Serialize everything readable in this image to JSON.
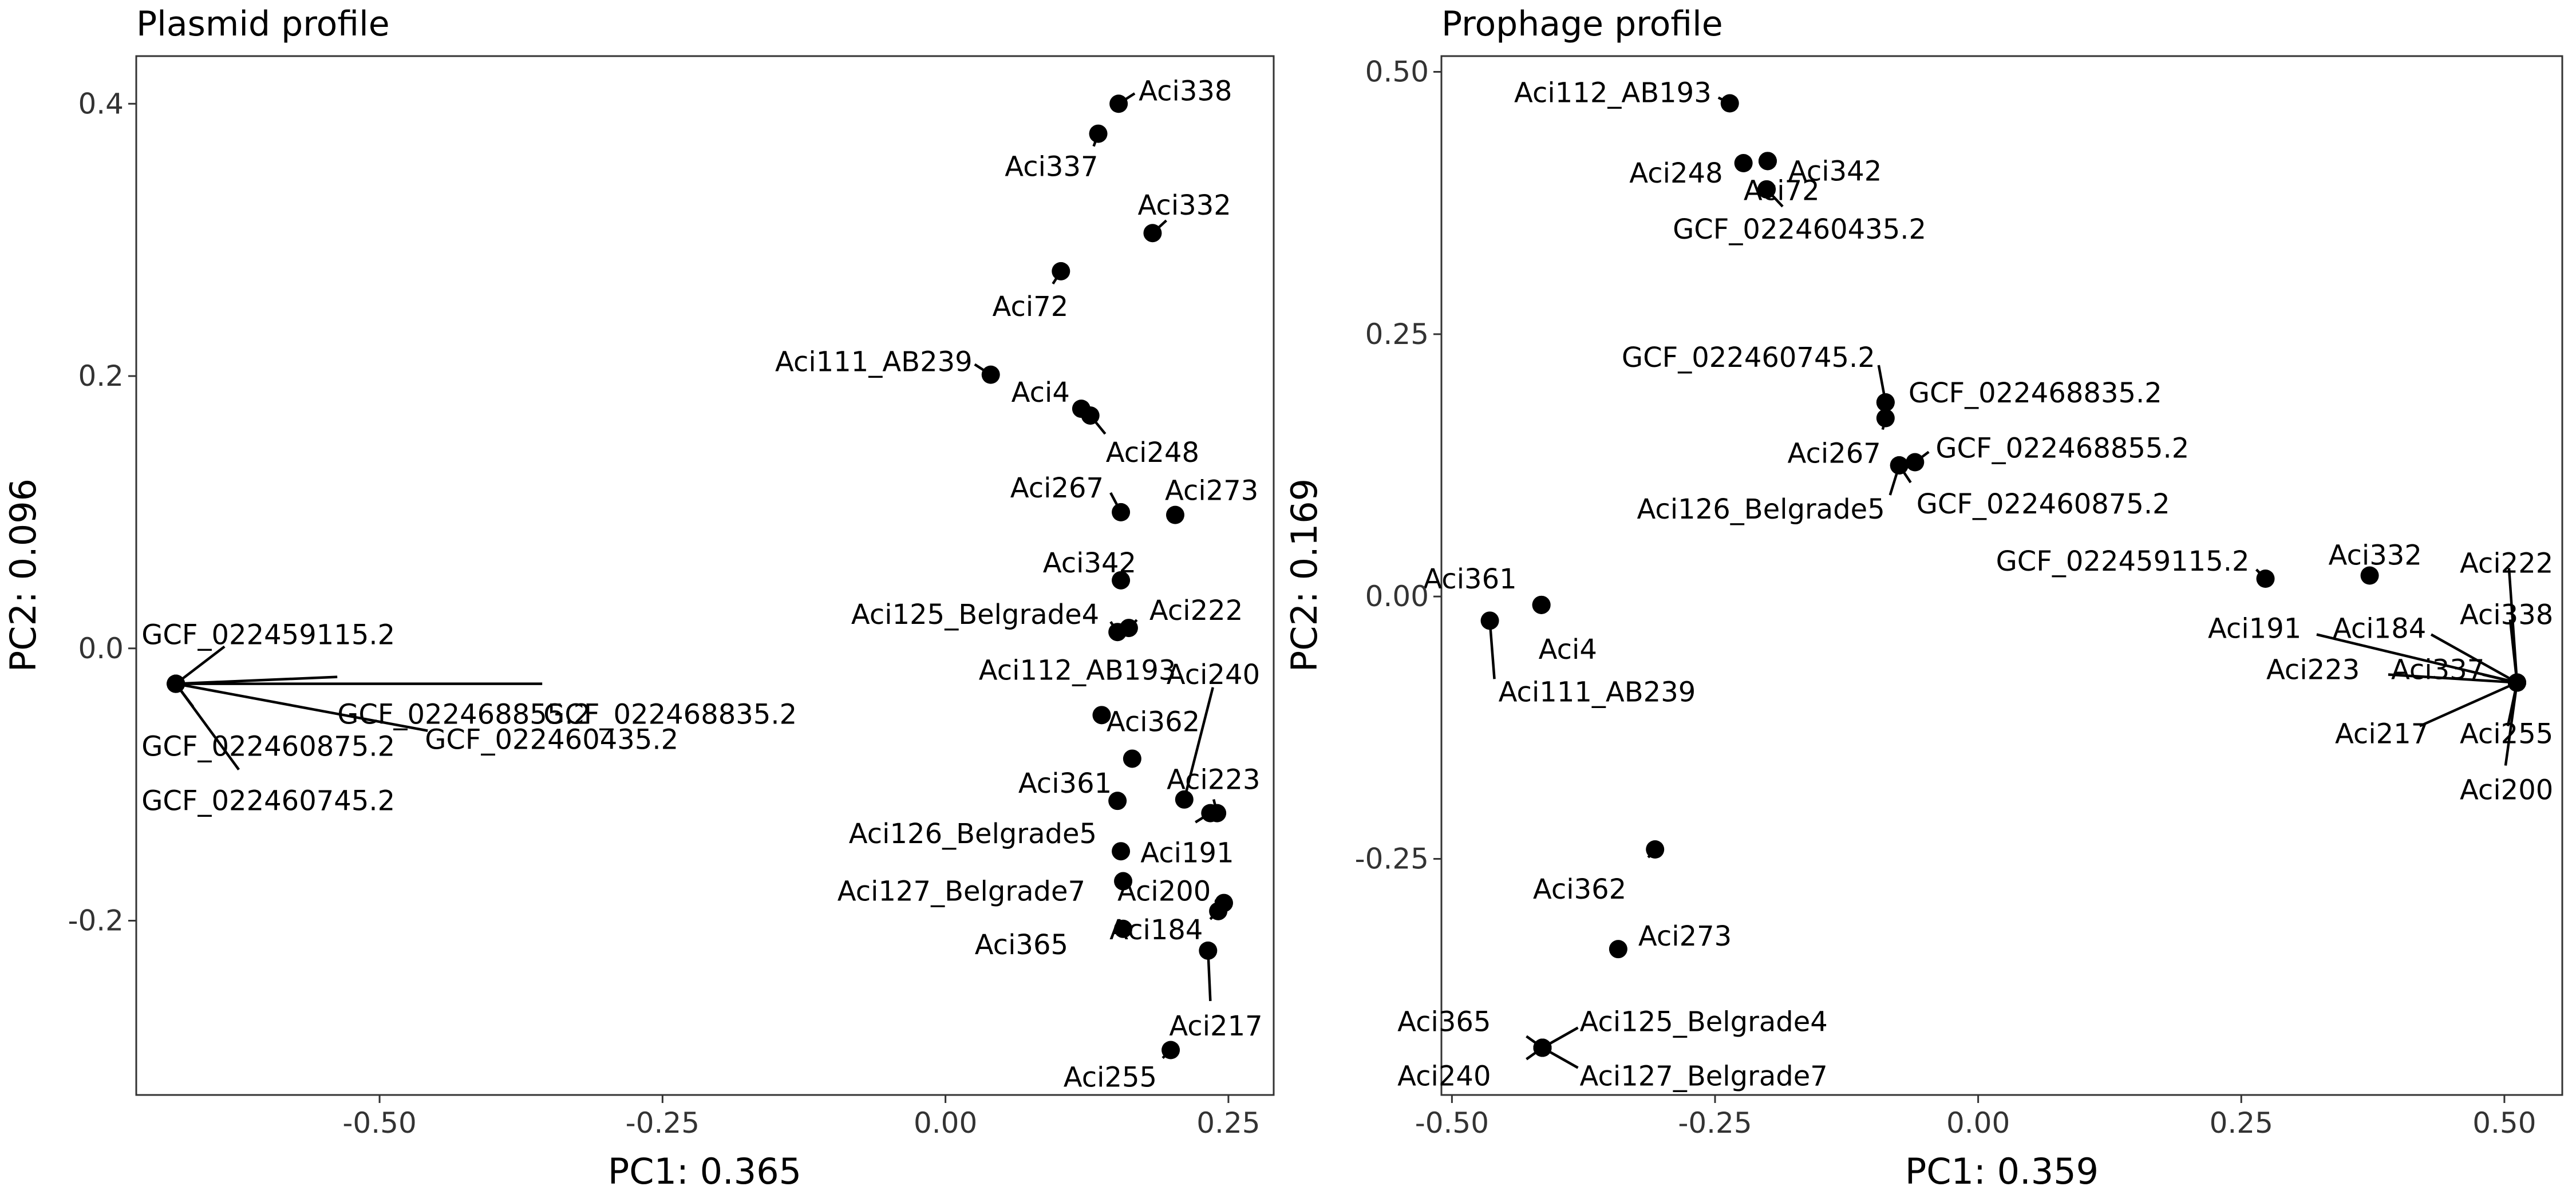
{
  "colors": {
    "point": "#000000",
    "frame": "#333333",
    "background": "#ffffff"
  },
  "chart_data": [
    {
      "type": "scatter",
      "title": "Plasmid profile",
      "xlabel": "PC1: 0.365",
      "ylabel": "PC2: 0.096",
      "xlim": [
        -0.715,
        0.29
      ],
      "ylim": [
        -0.328,
        0.435
      ],
      "xticks": [
        -0.5,
        -0.25,
        0.0,
        0.25
      ],
      "xtick_labels": [
        "-0.50",
        "-0.25",
        "0.00",
        "0.25"
      ],
      "yticks": [
        -0.2,
        0.0,
        0.2,
        0.4
      ],
      "ytick_labels": [
        "-0.2",
        "0.0",
        "0.2",
        "0.4"
      ],
      "grid": false,
      "points": [
        {
          "label": "Aci338",
          "x": 0.153,
          "y": 0.4
        },
        {
          "label": "Aci337",
          "x": 0.135,
          "y": 0.378
        },
        {
          "label": "Aci332",
          "x": 0.183,
          "y": 0.305
        },
        {
          "label": "Aci72",
          "x": 0.102,
          "y": 0.277
        },
        {
          "label": "Aci111_AB239",
          "x": 0.04,
          "y": 0.201
        },
        {
          "label": "Aci4",
          "x": 0.12,
          "y": 0.176
        },
        {
          "label": "Aci248",
          "x": 0.128,
          "y": 0.171
        },
        {
          "label": "Aci267",
          "x": 0.155,
          "y": 0.1
        },
        {
          "label": "Aci273",
          "x": 0.203,
          "y": 0.098
        },
        {
          "label": "Aci342",
          "x": 0.155,
          "y": 0.05
        },
        {
          "label": "Aci125_Belgrade4",
          "x": 0.152,
          "y": 0.012
        },
        {
          "label": "Aci222",
          "x": 0.162,
          "y": 0.015
        },
        {
          "label": "Aci112_AB193",
          "x": 0.138,
          "y": -0.049
        },
        {
          "label": "Aci362",
          "x": 0.165,
          "y": -0.081
        },
        {
          "label": "Aci361",
          "x": 0.152,
          "y": -0.112
        },
        {
          "label": "Aci240",
          "x": 0.211,
          "y": -0.111
        },
        {
          "label": "Aci223",
          "x": 0.24,
          "y": -0.121
        },
        {
          "label": "Aci191",
          "x": 0.234,
          "y": -0.121
        },
        {
          "label": "Aci126_Belgrade5",
          "x": 0.155,
          "y": -0.149
        },
        {
          "label": "Aci127_Belgrade7",
          "x": 0.157,
          "y": -0.171
        },
        {
          "label": "Aci200",
          "x": 0.246,
          "y": -0.187
        },
        {
          "label": "Aci184",
          "x": 0.241,
          "y": -0.193
        },
        {
          "label": "Aci365",
          "x": 0.157,
          "y": -0.206
        },
        {
          "label": "Aci217",
          "x": 0.232,
          "y": -0.222
        },
        {
          "label": "Aci255",
          "x": 0.199,
          "y": -0.295
        },
        {
          "label": "GCF_022459115.2",
          "x": -0.68,
          "y": -0.026
        },
        {
          "label": "GCF_022468855.2",
          "x": -0.68,
          "y": -0.026
        },
        {
          "label": "GCF_022468835.2",
          "x": -0.68,
          "y": -0.026
        },
        {
          "label": "GCF_022460875.2",
          "x": -0.68,
          "y": -0.026
        },
        {
          "label": "GCF_022460435.2",
          "x": -0.68,
          "y": -0.026
        },
        {
          "label": "GCF_022460745.2",
          "x": -0.68,
          "y": -0.026
        }
      ]
    },
    {
      "type": "scatter",
      "title": "Prophage profile",
      "xlabel": "PC1: 0.359",
      "ylabel": "PC2: 0.169",
      "xlim": [
        -0.51,
        0.555
      ],
      "ylim": [
        -0.475,
        0.515
      ],
      "xticks": [
        -0.5,
        -0.25,
        0.0,
        0.25,
        0.5
      ],
      "xtick_labels": [
        "-0.50",
        "-0.25",
        "0.00",
        "0.25",
        "0.50"
      ],
      "yticks": [
        -0.25,
        0.0,
        0.25,
        0.5
      ],
      "ytick_labels": [
        "-0.25",
        "0.00",
        "0.25",
        "0.50"
      ],
      "grid": false,
      "points": [
        {
          "label": "Aci112_AB193",
          "x": -0.236,
          "y": 0.47
        },
        {
          "label": "Aci72",
          "x": -0.2,
          "y": 0.415
        },
        {
          "label": "Aci248",
          "x": -0.223,
          "y": 0.413
        },
        {
          "label": "Aci342",
          "x": -0.2,
          "y": 0.415
        },
        {
          "label": "GCF_022460435.2",
          "x": -0.201,
          "y": 0.388
        },
        {
          "label": "GCF_022460745.2",
          "x": -0.088,
          "y": 0.185
        },
        {
          "label": "GCF_022468835.2",
          "x": -0.088,
          "y": 0.185
        },
        {
          "label": "Aci267",
          "x": -0.088,
          "y": 0.17
        },
        {
          "label": "GCF_022468855.2",
          "x": -0.06,
          "y": 0.128
        },
        {
          "label": "GCF_022460875.2",
          "x": -0.075,
          "y": 0.125
        },
        {
          "label": "Aci126_Belgrade5",
          "x": -0.075,
          "y": 0.125
        },
        {
          "label": "GCF_022459115.2",
          "x": 0.273,
          "y": 0.017
        },
        {
          "label": "Aci332",
          "x": 0.372,
          "y": 0.02
        },
        {
          "label": "Aci361",
          "x": -0.415,
          "y": -0.008
        },
        {
          "label": "Aci4",
          "x": -0.415,
          "y": -0.008
        },
        {
          "label": "Aci111_AB239",
          "x": -0.464,
          "y": -0.023
        },
        {
          "label": "Aci222",
          "x": 0.512,
          "y": -0.082
        },
        {
          "label": "Aci184",
          "x": 0.512,
          "y": -0.082
        },
        {
          "label": "Aci338",
          "x": 0.512,
          "y": -0.082
        },
        {
          "label": "Aci191",
          "x": 0.512,
          "y": -0.082
        },
        {
          "label": "Aci223",
          "x": 0.512,
          "y": -0.082
        },
        {
          "label": "Aci337",
          "x": 0.512,
          "y": -0.082
        },
        {
          "label": "Aci217",
          "x": 0.512,
          "y": -0.082
        },
        {
          "label": "Aci255",
          "x": 0.512,
          "y": -0.082
        },
        {
          "label": "Aci200",
          "x": 0.512,
          "y": -0.082
        },
        {
          "label": "Aci362",
          "x": -0.307,
          "y": -0.241
        },
        {
          "label": "Aci273",
          "x": -0.342,
          "y": -0.336
        },
        {
          "label": "Aci365",
          "x": -0.414,
          "y": -0.43
        },
        {
          "label": "Aci125_Belgrade4",
          "x": -0.414,
          "y": -0.43
        },
        {
          "label": "Aci240",
          "x": -0.414,
          "y": -0.43
        },
        {
          "label": "Aci127_Belgrade7",
          "x": -0.414,
          "y": -0.43
        }
      ]
    }
  ]
}
